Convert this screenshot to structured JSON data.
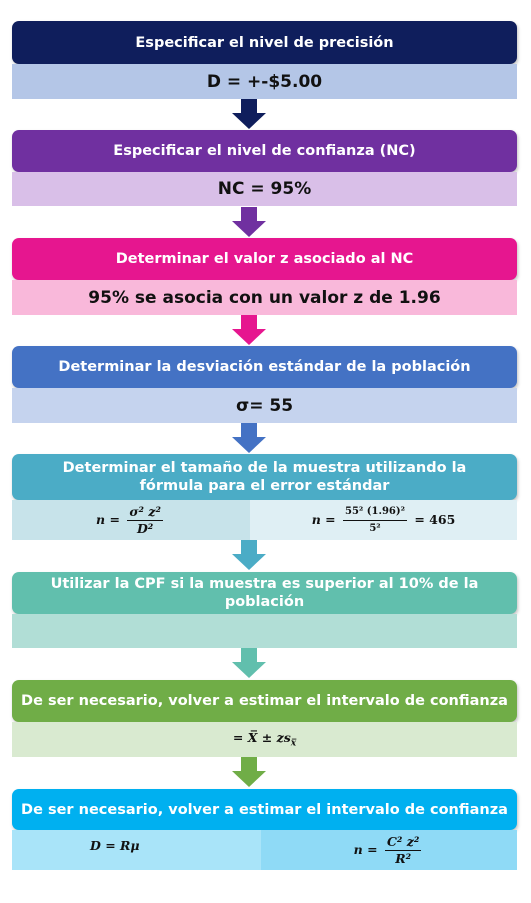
{
  "steps": [
    {
      "title": "Especificar el nivel de precisión",
      "value": "D = +-$5.00",
      "color": "#0f1e5c",
      "body_color": "#b4c6e7"
    },
    {
      "title": "Especificar el nivel de confianza (NC)",
      "value": "NC = 95%",
      "color": "#7030a0",
      "body_color": "#d9bfe8"
    },
    {
      "title": "Determinar el valor z asociado al NC",
      "value": "95% se asocia con un valor z de 1.96",
      "color": "#e6168f",
      "body_color": "#f9b8da"
    },
    {
      "title": "Determinar la desviación estándar de la población",
      "value": "σ= 55",
      "color": "#4472c4",
      "body_color": "#c5d3ee"
    },
    {
      "title": "Determinar el tamaño de la muestra utilizando la fórmula para el error estándar",
      "formula_left": {
        "lhs": "n =",
        "num": "σ² z²",
        "den": "D²"
      },
      "formula_right": {
        "lhs": "n =",
        "num": "55² (1.96)²",
        "den": "5²",
        "result": "= 465"
      },
      "color": "#4bacc6",
      "body_left_color": "#c7e3ea",
      "body_right_color": "#dfeff4"
    },
    {
      "title": "Utilizar la CPF si la muestra es superior al 10% de la población",
      "value": "",
      "color": "#61bfad",
      "body_color": "#b1ded6"
    },
    {
      "title": "De ser necesario, volver a estimar el intervalo de confianza",
      "formula": "= X̅ ± zs",
      "formula_sub": "x̅",
      "color": "#70ad47",
      "body_color": "#d9ead0"
    },
    {
      "title": "De ser necesario, volver a estimar el intervalo de confianza",
      "formula_left": "D = Rμ",
      "formula_right": {
        "lhs": "n =",
        "num": "C² z²",
        "den": "R²"
      },
      "color": "#00b0f0",
      "body_left_color": "#a9e4f9",
      "body_right_color": "#8fdaf6"
    }
  ],
  "arrow_colors": [
    "#0f1e5c",
    "#7030a0",
    "#e6168f",
    "#4472c4",
    "#4bacc6",
    "#61bfad",
    "#70ad47"
  ]
}
